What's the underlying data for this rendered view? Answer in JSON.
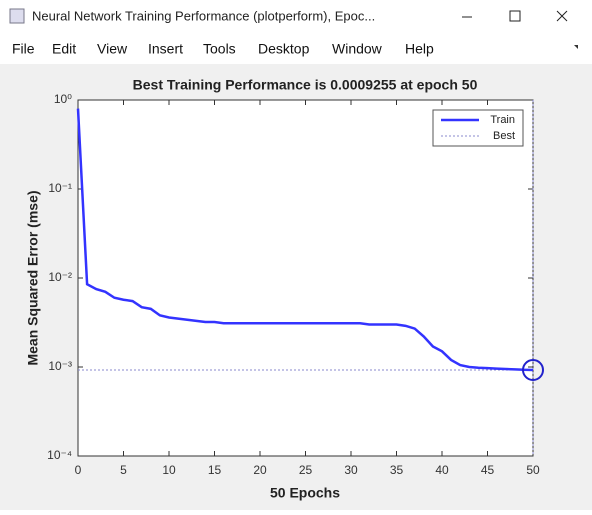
{
  "window": {
    "title": "Neural Network Training Performance (plotperform), Epoc...",
    "menu": [
      "File",
      "Edit",
      "View",
      "Insert",
      "Tools",
      "Desktop",
      "Window",
      "Help"
    ]
  },
  "chart_data": {
    "type": "line",
    "title": "Best Training Performance is 0.0009255 at epoch 50",
    "x_label": "50 Epochs",
    "y_label": "Mean Squared Error  (mse)",
    "x": [
      0,
      1,
      2,
      3,
      4,
      5,
      6,
      7,
      8,
      9,
      10,
      11,
      12,
      13,
      14,
      15,
      16,
      17,
      18,
      19,
      20,
      21,
      22,
      23,
      24,
      25,
      26,
      27,
      28,
      29,
      30,
      31,
      32,
      33,
      34,
      35,
      36,
      37,
      38,
      39,
      40,
      41,
      42,
      43,
      44,
      45,
      46,
      47,
      48,
      49,
      50
    ],
    "series": [
      {
        "name": "Train",
        "color": "#3333ff",
        "values": [
          0.8,
          0.0085,
          0.0075,
          0.007,
          0.006,
          0.0057,
          0.0055,
          0.0047,
          0.0045,
          0.0038,
          0.0036,
          0.0035,
          0.0034,
          0.0033,
          0.0032,
          0.0032,
          0.0031,
          0.0031,
          0.0031,
          0.0031,
          0.0031,
          0.0031,
          0.0031,
          0.0031,
          0.0031,
          0.0031,
          0.0031,
          0.0031,
          0.0031,
          0.0031,
          0.0031,
          0.0031,
          0.003,
          0.003,
          0.003,
          0.003,
          0.0029,
          0.0027,
          0.0022,
          0.0017,
          0.0015,
          0.0012,
          0.00105,
          0.001,
          0.00098,
          0.00097,
          0.00096,
          0.00095,
          0.00094,
          0.00093,
          0.0009255
        ]
      }
    ],
    "best": {
      "name": "Best",
      "color": "#8888cc",
      "epoch": 50,
      "value": 0.0009255
    },
    "xlim": [
      0,
      50
    ],
    "xticks": [
      0,
      5,
      10,
      15,
      20,
      25,
      30,
      35,
      40,
      45,
      50
    ],
    "ylim": [
      0.0001,
      1
    ],
    "log_y": true,
    "yticks": [
      {
        "value": 0.0001,
        "label": "10⁻⁴"
      },
      {
        "value": 0.001,
        "label": "10⁻³"
      },
      {
        "value": 0.01,
        "label": "10⁻²"
      },
      {
        "value": 0.1,
        "label": "10⁻¹"
      },
      {
        "value": 1,
        "label": "10⁰"
      }
    ],
    "legend": "upper right"
  }
}
